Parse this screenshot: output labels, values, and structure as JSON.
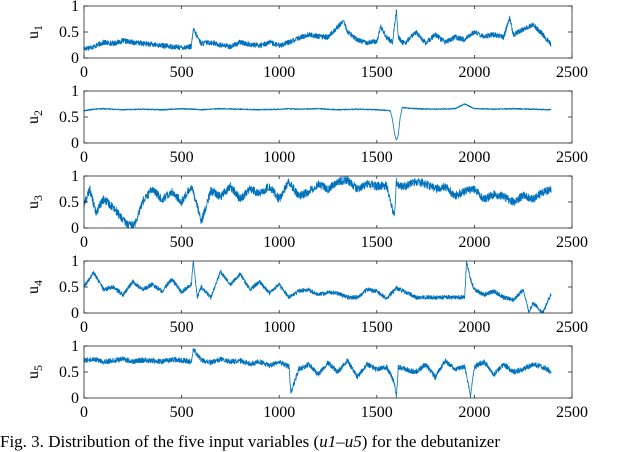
{
  "caption": {
    "prefix": "Fig. 3.",
    "text": "Distribution of the five input variables (",
    "math": "u1–u5",
    "suffix": ") for the debutanizer"
  },
  "chart_data": [
    {
      "type": "line",
      "ylabel": "u1",
      "xlim": [
        0,
        2500
      ],
      "ylim": [
        0,
        1
      ],
      "xticks": [
        0,
        500,
        1000,
        1500,
        2000,
        2500
      ],
      "yticks": [
        0,
        0.5,
        1
      ],
      "color": "#0072BD",
      "n_points": 2394,
      "x": [
        0,
        50,
        100,
        150,
        200,
        250,
        300,
        350,
        400,
        450,
        500,
        550,
        560,
        600,
        650,
        700,
        750,
        800,
        850,
        900,
        950,
        1000,
        1050,
        1100,
        1150,
        1200,
        1250,
        1300,
        1330,
        1350,
        1400,
        1450,
        1500,
        1520,
        1550,
        1580,
        1600,
        1610,
        1630,
        1650,
        1700,
        1750,
        1800,
        1850,
        1900,
        1950,
        2000,
        2050,
        2100,
        2150,
        2180,
        2200,
        2250,
        2300,
        2350,
        2394
      ],
      "y": [
        0.18,
        0.22,
        0.3,
        0.28,
        0.33,
        0.3,
        0.28,
        0.26,
        0.24,
        0.22,
        0.2,
        0.22,
        0.55,
        0.28,
        0.3,
        0.25,
        0.22,
        0.3,
        0.26,
        0.24,
        0.3,
        0.24,
        0.3,
        0.38,
        0.45,
        0.42,
        0.4,
        0.6,
        0.72,
        0.5,
        0.35,
        0.3,
        0.32,
        0.6,
        0.4,
        0.3,
        0.92,
        0.4,
        0.3,
        0.3,
        0.5,
        0.28,
        0.45,
        0.3,
        0.4,
        0.35,
        0.5,
        0.42,
        0.45,
        0.4,
        0.78,
        0.45,
        0.55,
        0.65,
        0.45,
        0.25
      ]
    },
    {
      "type": "line",
      "ylabel": "u2",
      "xlim": [
        0,
        2500
      ],
      "ylim": [
        0,
        1
      ],
      "xticks": [
        0,
        500,
        1000,
        1500,
        2000,
        2500
      ],
      "yticks": [
        0,
        0.5,
        1
      ],
      "color": "#0072BD",
      "n_points": 2394,
      "x": [
        0,
        50,
        100,
        200,
        300,
        400,
        500,
        560,
        600,
        700,
        800,
        900,
        1000,
        1050,
        1100,
        1200,
        1300,
        1400,
        1500,
        1570,
        1580,
        1590,
        1600,
        1610,
        1620,
        1630,
        1700,
        1800,
        1900,
        1950,
        2000,
        2100,
        2200,
        2300,
        2394
      ],
      "y": [
        0.62,
        0.65,
        0.66,
        0.64,
        0.65,
        0.64,
        0.66,
        0.65,
        0.64,
        0.66,
        0.65,
        0.64,
        0.65,
        0.66,
        0.65,
        0.66,
        0.64,
        0.65,
        0.64,
        0.62,
        0.45,
        0.2,
        0.05,
        0.15,
        0.5,
        0.68,
        0.66,
        0.65,
        0.66,
        0.75,
        0.66,
        0.65,
        0.66,
        0.65,
        0.64
      ]
    },
    {
      "type": "line",
      "ylabel": "u3",
      "xlim": [
        0,
        2500
      ],
      "ylim": [
        0,
        1
      ],
      "xticks": [
        0,
        500,
        1000,
        1500,
        2000,
        2500
      ],
      "yticks": [
        0,
        0.5,
        1
      ],
      "color": "#0072BD",
      "n_points": 2394,
      "x": [
        0,
        30,
        60,
        100,
        150,
        200,
        230,
        260,
        300,
        350,
        400,
        450,
        500,
        550,
        580,
        600,
        650,
        700,
        750,
        800,
        850,
        900,
        950,
        1000,
        1050,
        1100,
        1150,
        1200,
        1250,
        1300,
        1350,
        1400,
        1450,
        1500,
        1550,
        1590,
        1600,
        1610,
        1650,
        1700,
        1750,
        1800,
        1850,
        1900,
        1950,
        2000,
        2050,
        2100,
        2150,
        2200,
        2250,
        2300,
        2350,
        2394
      ],
      "y": [
        0.45,
        0.75,
        0.3,
        0.55,
        0.4,
        0.15,
        0.05,
        0.08,
        0.5,
        0.75,
        0.55,
        0.7,
        0.5,
        0.8,
        0.45,
        0.1,
        0.72,
        0.6,
        0.8,
        0.55,
        0.75,
        0.65,
        0.8,
        0.55,
        0.9,
        0.6,
        0.7,
        0.85,
        0.75,
        0.9,
        0.92,
        0.75,
        0.85,
        0.8,
        0.82,
        0.2,
        0.9,
        0.82,
        0.8,
        0.9,
        0.85,
        0.75,
        0.8,
        0.62,
        0.7,
        0.75,
        0.55,
        0.65,
        0.6,
        0.5,
        0.62,
        0.55,
        0.7,
        0.72
      ]
    },
    {
      "type": "line",
      "ylabel": "u4",
      "xlim": [
        0,
        2500
      ],
      "ylim": [
        0,
        1
      ],
      "xticks": [
        0,
        500,
        1000,
        1500,
        2000,
        2500
      ],
      "yticks": [
        0,
        0.5,
        1
      ],
      "color": "#0072BD",
      "n_points": 2394,
      "x": [
        0,
        50,
        100,
        150,
        200,
        250,
        300,
        350,
        400,
        450,
        500,
        550,
        560,
        580,
        600,
        650,
        700,
        750,
        800,
        850,
        900,
        950,
        1000,
        1050,
        1100,
        1150,
        1200,
        1250,
        1300,
        1350,
        1400,
        1450,
        1500,
        1550,
        1600,
        1650,
        1700,
        1750,
        1800,
        1850,
        1900,
        1950,
        1960,
        1980,
        2000,
        2050,
        2100,
        2150,
        2200,
        2250,
        2280,
        2300,
        2350,
        2394
      ],
      "y": [
        0.5,
        0.78,
        0.45,
        0.5,
        0.35,
        0.6,
        0.45,
        0.55,
        0.42,
        0.65,
        0.4,
        0.55,
        1.0,
        0.3,
        0.5,
        0.3,
        0.8,
        0.55,
        0.75,
        0.45,
        0.6,
        0.38,
        0.55,
        0.3,
        0.42,
        0.45,
        0.35,
        0.4,
        0.38,
        0.3,
        0.3,
        0.45,
        0.42,
        0.28,
        0.48,
        0.4,
        0.3,
        0.3,
        0.3,
        0.3,
        0.3,
        0.3,
        1.0,
        0.65,
        0.45,
        0.35,
        0.42,
        0.3,
        0.25,
        0.45,
        0.0,
        0.2,
        0.0,
        0.38
      ]
    },
    {
      "type": "line",
      "ylabel": "u5",
      "xlim": [
        0,
        2500
      ],
      "ylim": [
        0,
        1
      ],
      "xticks": [
        0,
        500,
        1000,
        1500,
        2000,
        2500
      ],
      "yticks": [
        0,
        0.5,
        1
      ],
      "color": "#0072BD",
      "n_points": 2394,
      "x": [
        0,
        50,
        100,
        150,
        200,
        250,
        300,
        350,
        400,
        450,
        500,
        550,
        560,
        600,
        650,
        700,
        750,
        800,
        850,
        900,
        950,
        1000,
        1050,
        1060,
        1100,
        1150,
        1200,
        1250,
        1300,
        1350,
        1400,
        1450,
        1500,
        1550,
        1590,
        1600,
        1610,
        1650,
        1700,
        1750,
        1800,
        1850,
        1900,
        1950,
        1980,
        2000,
        2050,
        2100,
        2150,
        2200,
        2250,
        2300,
        2350,
        2394
      ],
      "y": [
        0.72,
        0.75,
        0.7,
        0.72,
        0.75,
        0.7,
        0.73,
        0.72,
        0.7,
        0.74,
        0.72,
        0.7,
        0.95,
        0.72,
        0.68,
        0.75,
        0.7,
        0.72,
        0.65,
        0.7,
        0.62,
        0.7,
        0.6,
        0.1,
        0.55,
        0.65,
        0.45,
        0.68,
        0.5,
        0.72,
        0.4,
        0.65,
        0.55,
        0.6,
        0.3,
        0.0,
        0.6,
        0.55,
        0.5,
        0.65,
        0.4,
        0.72,
        0.55,
        0.6,
        0.05,
        0.6,
        0.7,
        0.45,
        0.65,
        0.5,
        0.55,
        0.65,
        0.6,
        0.5
      ]
    }
  ]
}
